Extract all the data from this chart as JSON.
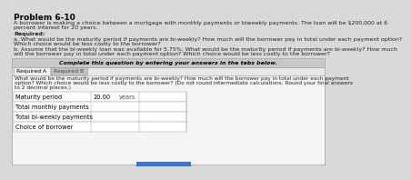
{
  "title": "Problem 6-10",
  "body_line1": "A borrower is making a choice between a mortgage with monthly payments or biweekly payments. The loan will be $200,000 at 6",
  "body_line2": "percent interest for 20 years.",
  "required_label": "Required:",
  "req_a": "a. What would be the maturity period if payments are bi-weekly? How much will the borrower pay in total under each payment option?",
  "req_a2": "Which choice would be less costly to the borrower?",
  "req_b": "b. Assume that the bi-weekly loan was available for 5.75%. What would be the maturity period if payments are bi-weekly? How much",
  "req_b2": "will the borrower pay in total under each payment option? Which choice would be less costly to the borrower?",
  "complete_text": "Complete this question by entering your answers in the tabs below.",
  "tab1": "Required A",
  "tab2": "Required B",
  "instruction1": "What would be the maturity period if payments are bi-weekly? How much will the borrower pay in total under each payment",
  "instruction2": "option? Which choice would be less costly to the borrower? (Do not round intermediate calculations. Round your final answers",
  "instruction3": "to 2 decimal places.)",
  "row_labels": [
    "Maturity period",
    "Total monthly payments",
    "Total bi-weekly payments",
    "Choice of borrower"
  ],
  "col1_value": "20.00",
  "col1_unit": "years",
  "bg_outer": "#d9d9d9",
  "bg_inner": "#ffffff",
  "tab_active_bg": "#f0f0f0",
  "tab_inactive_bg": "#c0c0c0",
  "border_color": "#999999",
  "complete_bg": "#c8c8c8",
  "title_fontsize": 6.5,
  "body_fontsize": 4.5,
  "table_fontsize": 4.8,
  "bottom_bar_color": "#4472c4"
}
